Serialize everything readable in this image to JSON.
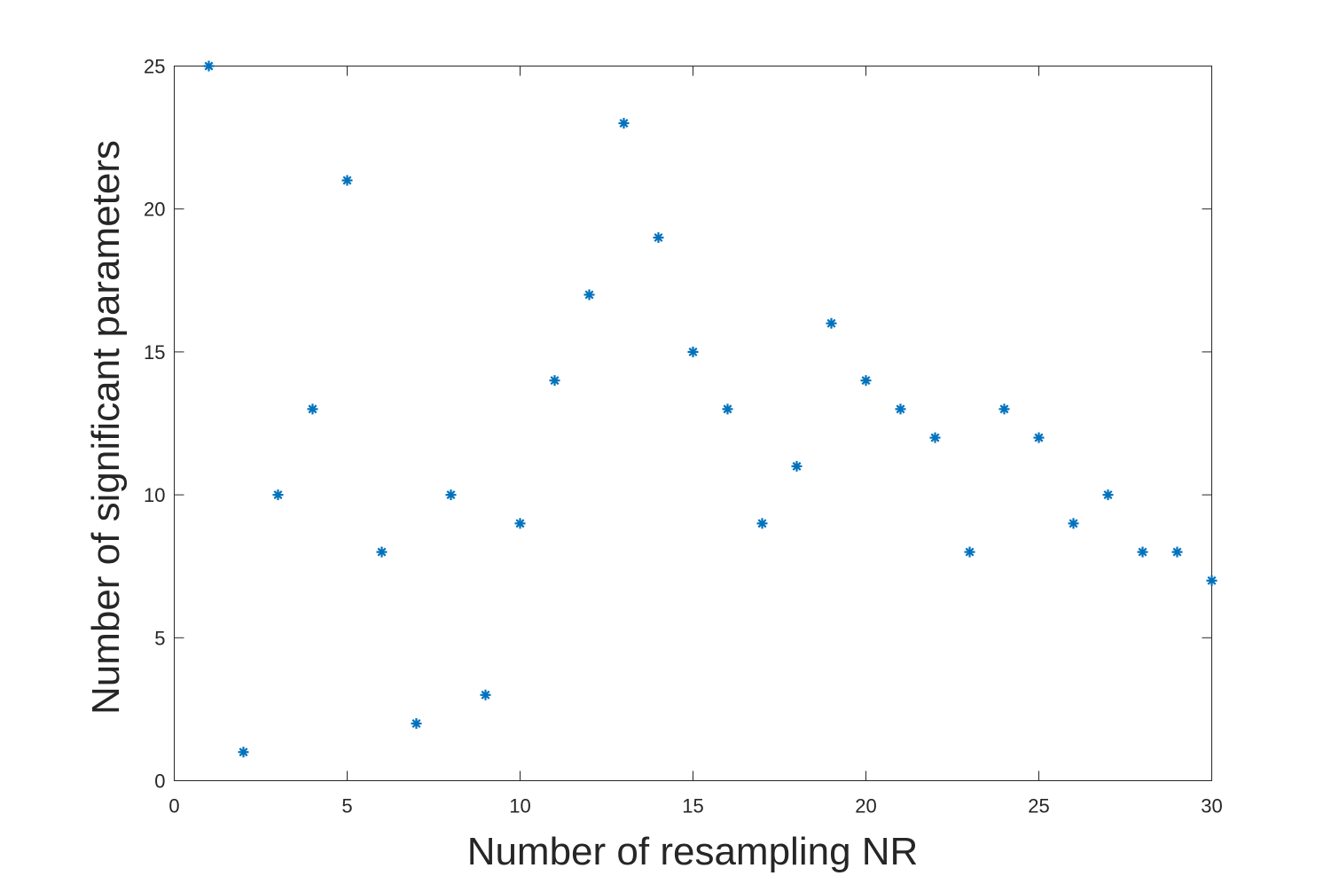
{
  "chart_data": {
    "type": "scatter",
    "xlabel": "Number of resampling NR",
    "ylabel": "Number of significant parameters",
    "xlim": [
      0,
      30
    ],
    "ylim": [
      0,
      25
    ],
    "xticks": [
      0,
      5,
      10,
      15,
      20,
      25,
      30
    ],
    "yticks": [
      0,
      5,
      10,
      15,
      20,
      25
    ],
    "grid": false,
    "marker": "asterisk",
    "color": "#0072BD",
    "series": [
      {
        "x": [
          1,
          2,
          3,
          4,
          5,
          6,
          7,
          8,
          9,
          10,
          11,
          12,
          13,
          14,
          15,
          16,
          17,
          18,
          19,
          20,
          21,
          22,
          23,
          24,
          25,
          26,
          27,
          28,
          29,
          30
        ],
        "y": [
          25,
          1,
          10,
          13,
          21,
          8,
          2,
          10,
          3,
          9,
          14,
          17,
          23,
          19,
          15,
          13,
          9,
          11,
          16,
          14,
          13,
          12,
          8,
          13,
          12,
          9,
          10,
          8,
          8,
          7
        ]
      }
    ]
  }
}
